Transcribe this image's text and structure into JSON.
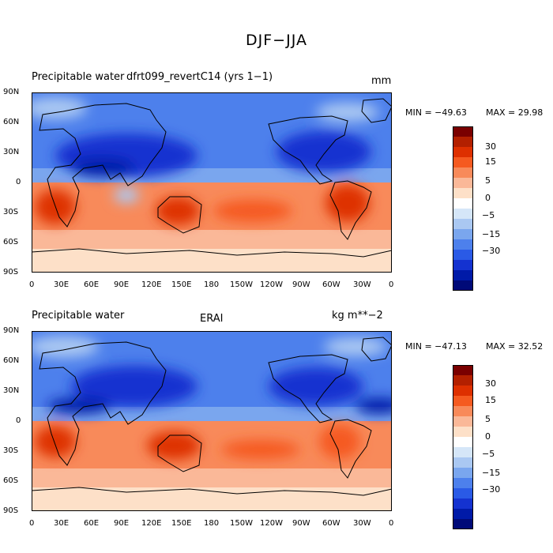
{
  "main_title": "DJF−JJA",
  "panels": [
    {
      "left_title": "Precipitable water",
      "center_title": "dfrt099_revertC14 (yrs 1−1)",
      "units": "mm",
      "min_label": "MIN = −49.63",
      "max_label": "MAX =  29.98"
    },
    {
      "left_title": "Precipitable water",
      "center_title": "ERAI",
      "units": "kg m**−2",
      "min_label": "MIN = −47.13",
      "max_label": "MAX =  32.52"
    }
  ],
  "lat_ticks": [
    "90N",
    "60N",
    "30N",
    "0",
    "30S",
    "60S",
    "90S"
  ],
  "lon_ticks": [
    "0",
    "30E",
    "60E",
    "90E",
    "120E",
    "150E",
    "180",
    "150W",
    "120W",
    "90W",
    "60W",
    "30W",
    "0"
  ],
  "colorbar": {
    "labels": [
      "30",
      "15",
      "5",
      "0",
      "−5",
      "−15",
      "−30"
    ],
    "colors": [
      "#7a0000",
      "#b32000",
      "#de3000",
      "#f55a20",
      "#f88a5a",
      "#fab898",
      "#fde0c8",
      "#ffffff",
      "#d5e6f8",
      "#aac8f2",
      "#7aa6ee",
      "#4d80ec",
      "#2a5ae6",
      "#1432d0",
      "#001aa8",
      "#000a78"
    ]
  }
}
